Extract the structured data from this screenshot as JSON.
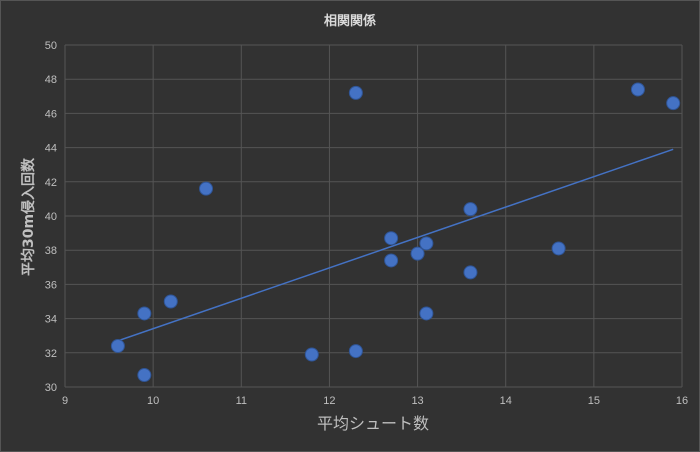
{
  "chart_data": {
    "type": "scatter",
    "title": "相関関係",
    "xlabel": "平均シュート数",
    "ylabel": "平均30m侵入回数",
    "xlim": [
      9,
      16
    ],
    "ylim": [
      30,
      50
    ],
    "x_ticks": [
      9,
      10,
      11,
      12,
      13,
      14,
      15,
      16
    ],
    "y_ticks": [
      30,
      32,
      34,
      36,
      38,
      40,
      42,
      44,
      46,
      48,
      50
    ],
    "grid": true,
    "legend": "none",
    "colors": {
      "background": "#323232",
      "point": "#4472c4",
      "trendline": "#4472c4",
      "grid": "#555555",
      "text": "#bfbfbf"
    },
    "series": [
      {
        "points": [
          {
            "x": 9.6,
            "y": 32.4
          },
          {
            "x": 9.9,
            "y": 34.3
          },
          {
            "x": 9.9,
            "y": 30.7
          },
          {
            "x": 10.2,
            "y": 35.0
          },
          {
            "x": 10.6,
            "y": 41.6
          },
          {
            "x": 11.8,
            "y": 31.9
          },
          {
            "x": 12.3,
            "y": 47.2
          },
          {
            "x": 12.3,
            "y": 32.1
          },
          {
            "x": 12.7,
            "y": 38.7
          },
          {
            "x": 12.7,
            "y": 37.4
          },
          {
            "x": 13.0,
            "y": 37.8
          },
          {
            "x": 13.1,
            "y": 38.4
          },
          {
            "x": 13.1,
            "y": 34.3
          },
          {
            "x": 13.6,
            "y": 40.4
          },
          {
            "x": 13.6,
            "y": 36.7
          },
          {
            "x": 14.6,
            "y": 38.1
          },
          {
            "x": 15.5,
            "y": 47.4
          },
          {
            "x": 15.9,
            "y": 46.6
          }
        ],
        "trendline": {
          "type": "linear",
          "from": {
            "x": 9.6,
            "y": 32.7
          },
          "to": {
            "x": 15.9,
            "y": 43.9
          }
        }
      }
    ]
  }
}
